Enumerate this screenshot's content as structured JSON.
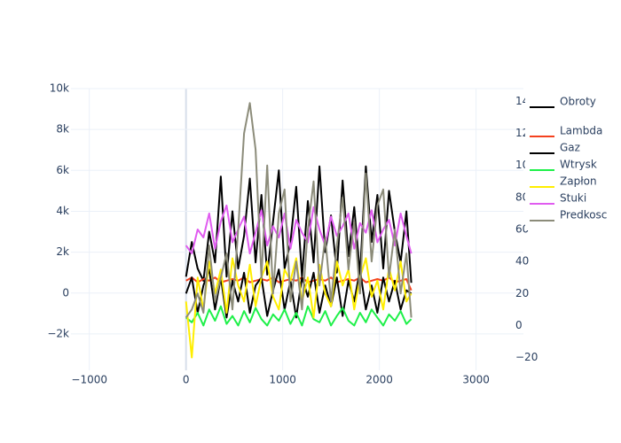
{
  "chart_data": {
    "type": "line",
    "x": [
      0,
      60,
      120,
      180,
      240,
      300,
      360,
      420,
      480,
      540,
      600,
      660,
      720,
      780,
      840,
      900,
      960,
      1020,
      1080,
      1140,
      1200,
      1260,
      1320,
      1380,
      1440,
      1500,
      1560,
      1620,
      1680,
      1740,
      1800,
      1860,
      1920,
      1980,
      2040,
      2100,
      2160,
      2220,
      2280,
      2330
    ],
    "xlim": [
      -1190,
      3490
    ],
    "xticks": [
      {
        "value": -1000,
        "label": "−1000"
      },
      0,
      1000,
      2000,
      3000
    ],
    "ylim": [
      -3780,
      10000
    ],
    "yticks": [
      {
        "value": -2000,
        "label": "−2k"
      },
      0,
      {
        "value": 2000,
        "label": "2k"
      },
      {
        "value": 4000,
        "label": "4k"
      },
      {
        "value": 6000,
        "label": "6k"
      },
      {
        "value": 8000,
        "label": "8k"
      },
      {
        "value": 10000,
        "label": "10k"
      }
    ],
    "y2lim": [
      -28,
      148
    ],
    "y2ticks": [
      {
        "value": -20,
        "label": "−20"
      },
      0,
      20,
      40,
      60,
      80,
      100,
      120,
      140
    ],
    "grid": true,
    "legend": "right",
    "series": [
      {
        "name": "Obroty",
        "color": "#000000",
        "values": [
          800,
          2500,
          1200,
          600,
          3000,
          1500,
          5700,
          800,
          4000,
          1200,
          2800,
          5600,
          1500,
          4800,
          900,
          3500,
          6000,
          1200,
          2500,
          5200,
          800,
          4500,
          1500,
          6200,
          2000,
          3800,
          1000,
          5500,
          1800,
          4200,
          900,
          6200,
          2500,
          4800,
          1200,
          5000,
          3000,
          1500,
          4000,
          500
        ]
      },
      {
        "name": "Lambda",
        "color": "#f4411e",
        "axis": "y2",
        "values": [
          28,
          30,
          27,
          29,
          28,
          30,
          27,
          28,
          29,
          28,
          30,
          27,
          28,
          29,
          28,
          30,
          27,
          28,
          29,
          28,
          30,
          27,
          28,
          29,
          28,
          30,
          27,
          28,
          29,
          28,
          30,
          27,
          28,
          29,
          28,
          30,
          27,
          28,
          29,
          22
        ]
      },
      {
        "name": "Gaz",
        "color": "#000000",
        "axis": "y2",
        "values": [
          20,
          30,
          8,
          25,
          35,
          10,
          30,
          5,
          28,
          15,
          33,
          8,
          25,
          30,
          6,
          22,
          35,
          10,
          28,
          5,
          30,
          18,
          33,
          8,
          25,
          12,
          30,
          6,
          28,
          15,
          35,
          10,
          25,
          8,
          30,
          15,
          28,
          10,
          22,
          20
        ]
      },
      {
        "name": "Wtrysk",
        "color": "#1ef049",
        "axis": "y2",
        "values": [
          5,
          2,
          8,
          0,
          10,
          3,
          12,
          1,
          6,
          0,
          9,
          2,
          11,
          4,
          0,
          7,
          3,
          10,
          1,
          8,
          0,
          12,
          4,
          2,
          9,
          0,
          6,
          11,
          3,
          0,
          8,
          2,
          10,
          5,
          0,
          7,
          3,
          9,
          1,
          4
        ]
      },
      {
        "name": "Zapłon",
        "color": "#ffee00",
        "axis": "y2",
        "values": [
          15,
          -20,
          30,
          10,
          40,
          20,
          35,
          8,
          42,
          25,
          15,
          38,
          12,
          30,
          40,
          18,
          10,
          35,
          28,
          42,
          15,
          30,
          5,
          38,
          20,
          12,
          40,
          25,
          35,
          10,
          30,
          42,
          18,
          28,
          10,
          36,
          22,
          40,
          15,
          20
        ]
      },
      {
        "name": "Stuki",
        "color": "#e05cf0",
        "axis": "y2",
        "values": [
          50,
          45,
          60,
          55,
          70,
          48,
          65,
          75,
          52,
          60,
          68,
          45,
          58,
          72,
          50,
          62,
          55,
          70,
          48,
          66,
          58,
          52,
          74,
          60,
          50,
          68,
          56,
          62,
          70,
          48,
          64,
          58,
          72,
          52,
          60,
          66,
          50,
          70,
          56,
          45
        ]
      },
      {
        "name": "Predkosc",
        "color": "#8c8c7a",
        "axis": "y2",
        "values": [
          5,
          10,
          20,
          8,
          50,
          15,
          30,
          45,
          10,
          60,
          120,
          139,
          110,
          30,
          100,
          20,
          70,
          85,
          15,
          40,
          10,
          60,
          90,
          25,
          55,
          15,
          50,
          80,
          35,
          65,
          20,
          95,
          40,
          75,
          85,
          30,
          60,
          20,
          45,
          5
        ]
      }
    ]
  }
}
